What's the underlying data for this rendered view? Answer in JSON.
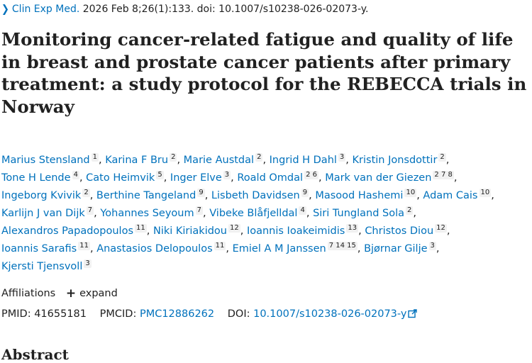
{
  "citation": {
    "journal": "Clin Exp Med.",
    "details": " 2026 Feb 8;26(1):133. doi: 10.1007/s10238-026-02073-y."
  },
  "title": [
    "Monitoring cancer-related fatigue and quality of life",
    "in breast and prostate cancer patients after primary",
    "treatment: a study protocol for the REBECCA trials in",
    "Norway"
  ],
  "author_lines": [
    [
      {
        "name": "Marius Stensland",
        "aff": "1"
      },
      {
        "name": "Karina F Bru",
        "aff": "2"
      },
      {
        "name": "Marie Austdal",
        "aff": "2"
      },
      {
        "name": "Ingrid H Dahl",
        "aff": "3"
      },
      {
        "name": "Kristin Jonsdottir",
        "aff": "2",
        "trail": ","
      }
    ],
    [
      {
        "name": "Tone H Lende",
        "aff": "4"
      },
      {
        "name": "Cato Heimvik",
        "aff": "5"
      },
      {
        "name": "Inger Elve",
        "aff": "3"
      },
      {
        "name": "Roald Omdal",
        "aff": "2 6"
      },
      {
        "name": "Mark van der Giezen",
        "aff": "2 7 8",
        "trail": ","
      }
    ],
    [
      {
        "name": "Ingeborg Kvivik",
        "aff": "2"
      },
      {
        "name": "Berthine Tangeland",
        "aff": "9"
      },
      {
        "name": "Lisbeth Davidsen",
        "aff": "9"
      },
      {
        "name": "Masood Hashemi",
        "aff": "10"
      },
      {
        "name": "Adam Cais",
        "aff": "10",
        "trail": ","
      }
    ],
    [
      {
        "name": "Karlijn J van Dijk",
        "aff": "7"
      },
      {
        "name": "Yohannes Seyoum",
        "aff": "7"
      },
      {
        "name": "Vibeke Blåfjelldal",
        "aff": "4"
      },
      {
        "name": "Siri Tungland Sola",
        "aff": "2",
        "trail": ","
      }
    ],
    [
      {
        "name": "Alexandros Papadopoulos",
        "aff": "11"
      },
      {
        "name": "Niki Kiriakidou",
        "aff": "12"
      },
      {
        "name": "Ioannis Ioakeimidis",
        "aff": "13"
      },
      {
        "name": "Christos Diou",
        "aff": "12",
        "trail": ","
      }
    ],
    [
      {
        "name": "Ioannis Sarafis",
        "aff": "11"
      },
      {
        "name": "Anastasios Delopoulos",
        "aff": "11"
      },
      {
        "name": "Emiel A M Janssen",
        "aff": "7 14 15"
      },
      {
        "name": "Bjørnar Gilje",
        "aff": "3",
        "trail": ","
      }
    ],
    [
      {
        "name": "Kjersti Tjensvoll",
        "aff": "3"
      }
    ]
  ],
  "affiliations": {
    "label": "Affiliations",
    "expand_label": "expand"
  },
  "ids": {
    "pmid_label": "PMID:",
    "pmid": "41655181",
    "pmcid_label": "PMCID:",
    "pmcid": "PMC12886262",
    "doi_label": "DOI:",
    "doi": "10.1007/s10238-026-02073-y"
  },
  "abstract_heading": "Abstract",
  "colors": {
    "link": "#0071bc",
    "text": "#212121"
  },
  "icons": [
    "chevron-right-icon",
    "plus-icon",
    "external-link-icon"
  ]
}
